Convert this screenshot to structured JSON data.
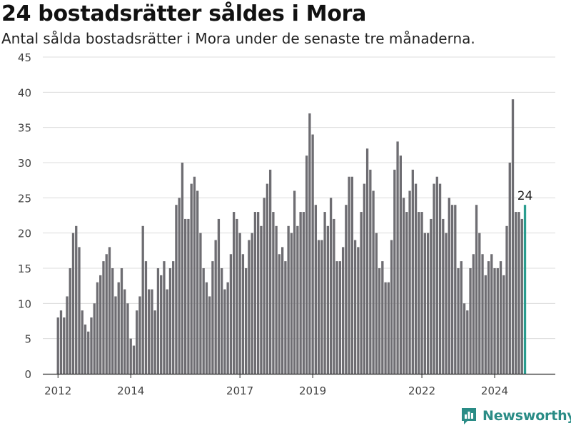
{
  "title": "24 bostadsrätter såldes i Mora",
  "subtitle": "Antal sålda bostadsrätter i Mora under de senaste tre månaderna.",
  "brand": {
    "name": "Newsworthy",
    "icon": "bar-chart-logo-icon",
    "color": "#2a8c86"
  },
  "chart_data": {
    "type": "bar",
    "title": "24 bostadsrätter såldes i Mora",
    "subtitle": "Antal sålda bostadsrätter i Mora under de senaste tre månaderna.",
    "xlabel": "",
    "ylabel": "",
    "x_start": "2012-01",
    "x_interval": "month",
    "xlim": [
      "2011-08",
      "2025-09"
    ],
    "ylim": [
      0,
      45
    ],
    "yticks": [
      0,
      5,
      10,
      15,
      20,
      25,
      30,
      35,
      40,
      45
    ],
    "xticks": [
      {
        "label": "2012",
        "date": "2012-01"
      },
      {
        "label": "2014",
        "date": "2014-01"
      },
      {
        "label": "2017",
        "date": "2017-01"
      },
      {
        "label": "2019",
        "date": "2019-01"
      },
      {
        "label": "2022",
        "date": "2022-01"
      },
      {
        "label": "2024",
        "date": "2024-01"
      }
    ],
    "grid": true,
    "legend": "none",
    "bar_color": "#6e6d72",
    "highlight_color": "#2a9d8f",
    "highlight_label": "24",
    "values": [
      8,
      9,
      8,
      11,
      15,
      20,
      21,
      18,
      9,
      7,
      6,
      8,
      10,
      13,
      14,
      16,
      17,
      18,
      15,
      11,
      13,
      15,
      12,
      10,
      5,
      4,
      9,
      11,
      21,
      16,
      12,
      12,
      9,
      15,
      14,
      16,
      12,
      15,
      16,
      24,
      25,
      30,
      22,
      22,
      27,
      28,
      26,
      20,
      15,
      13,
      11,
      16,
      19,
      22,
      15,
      12,
      13,
      17,
      23,
      22,
      20,
      17,
      15,
      19,
      20,
      23,
      23,
      21,
      25,
      27,
      29,
      23,
      21,
      17,
      18,
      16,
      21,
      20,
      26,
      21,
      23,
      23,
      31,
      37,
      34,
      24,
      19,
      19,
      23,
      21,
      25,
      22,
      16,
      16,
      18,
      24,
      28,
      28,
      19,
      18,
      23,
      27,
      32,
      29,
      26,
      20,
      15,
      16,
      13,
      13,
      19,
      29,
      33,
      31,
      25,
      23,
      26,
      29,
      27,
      23,
      23,
      20,
      20,
      22,
      27,
      28,
      27,
      22,
      20,
      25,
      24,
      24,
      15,
      16,
      10,
      9,
      15,
      17,
      24,
      20,
      17,
      14,
      16,
      17,
      15,
      15,
      16,
      14,
      21,
      30,
      39,
      23,
      23,
      22,
      24
    ]
  }
}
